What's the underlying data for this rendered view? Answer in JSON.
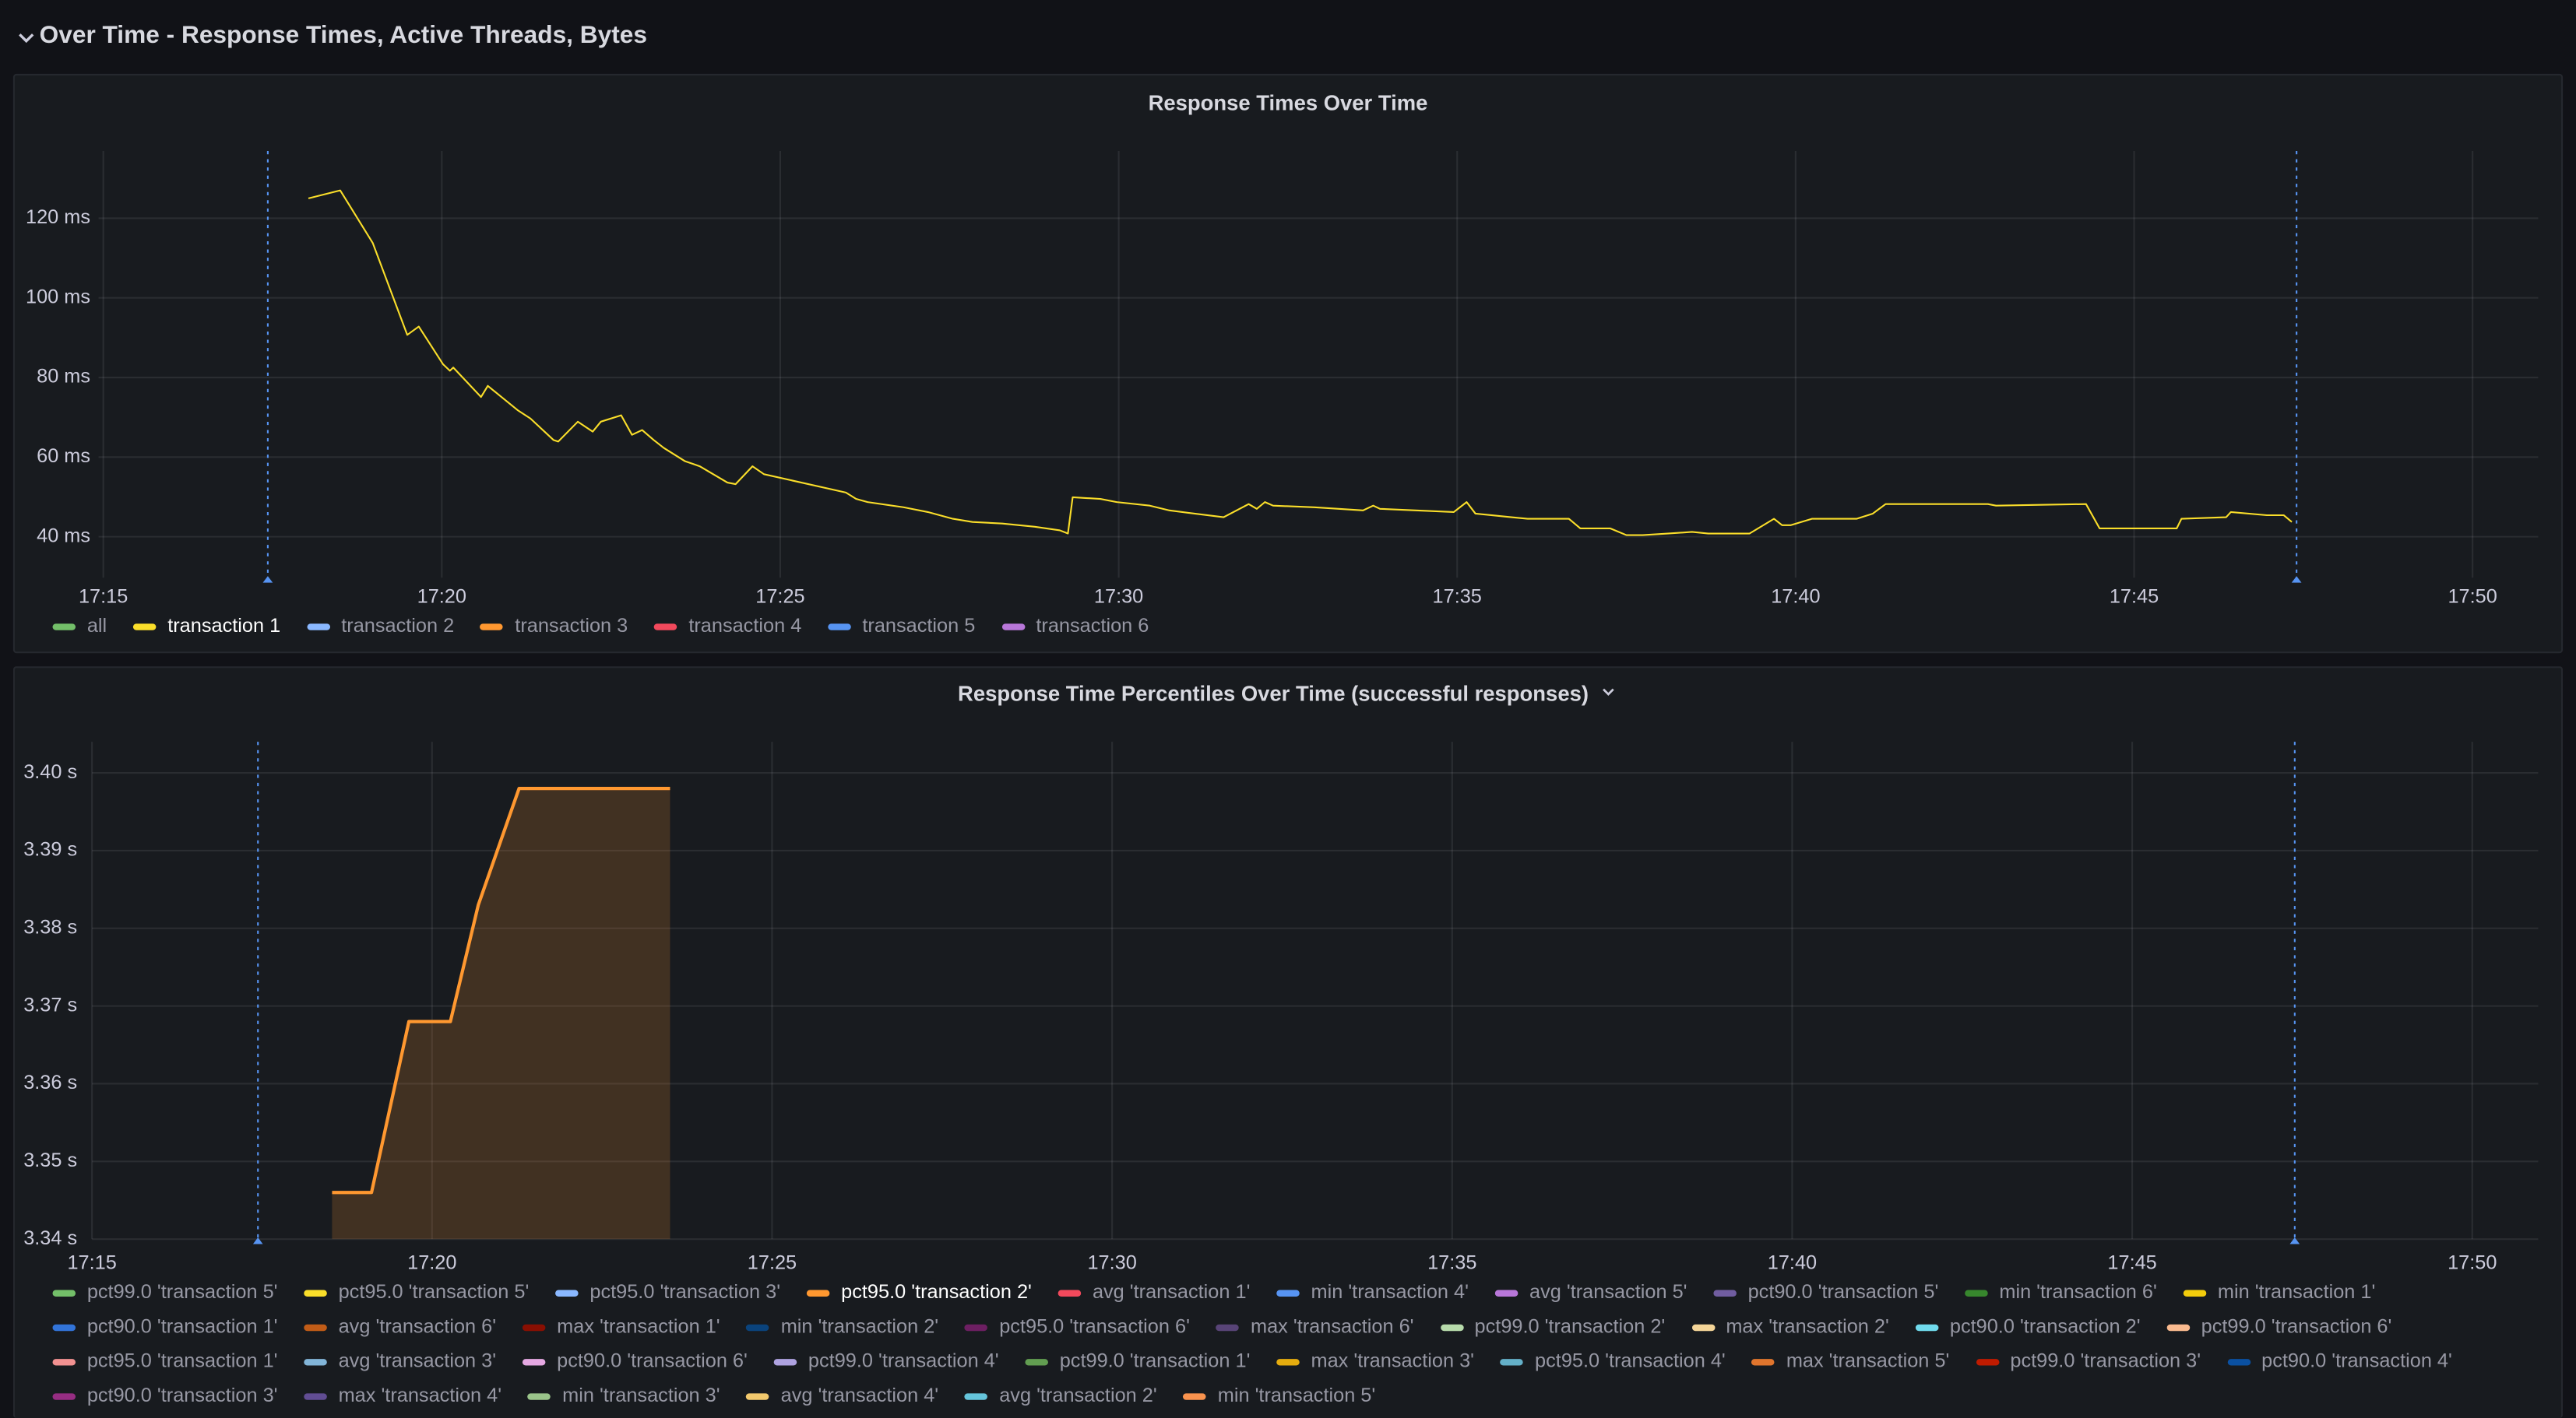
{
  "header": {
    "title": "Over Time - Response Times, Active Threads, Bytes"
  },
  "chart_data": [
    {
      "type": "line",
      "title": "Response Times Over Time",
      "grid": true,
      "line_width": 1,
      "fill": false,
      "xlim": [
        1034.93,
        1070.97
      ],
      "xticks": [
        {
          "value": 1035,
          "label": "17:15"
        },
        {
          "value": 1040,
          "label": "17:20"
        },
        {
          "value": 1045,
          "label": "17:25"
        },
        {
          "value": 1050,
          "label": "17:30"
        },
        {
          "value": 1055,
          "label": "17:35"
        },
        {
          "value": 1060,
          "label": "17:40"
        },
        {
          "value": 1065,
          "label": "17:45"
        },
        {
          "value": 1070,
          "label": "17:50"
        }
      ],
      "ylim": [
        29.7,
        136.9
      ],
      "yticks": [
        {
          "value": 40,
          "label": "40 ms"
        },
        {
          "value": 60,
          "label": "60 ms"
        },
        {
          "value": 80,
          "label": "80 ms"
        },
        {
          "value": 100,
          "label": "100 ms"
        },
        {
          "value": 120,
          "label": "120 ms"
        }
      ],
      "markers": [
        1037.43,
        1067.4
      ],
      "marker_color": "#5794f2",
      "series": [
        {
          "name": "all",
          "color": "#73bf69",
          "x": [],
          "values": []
        },
        {
          "name": "transaction 1",
          "color": "#fade2a",
          "x": [
            1038.03,
            1038.5,
            1038.98,
            1039.49,
            1039.66,
            1040.02,
            1040.12,
            1040.17,
            1040.58,
            1040.68,
            1041.12,
            1041.31,
            1041.65,
            1041.72,
            1042.01,
            1042.23,
            1042.35,
            1042.65,
            1042.81,
            1042.96,
            1043.13,
            1043.28,
            1043.59,
            1043.81,
            1044.22,
            1044.34,
            1044.59,
            1044.76,
            1045.97,
            1046.12,
            1046.29,
            1046.82,
            1047.18,
            1047.55,
            1047.84,
            1048.28,
            1048.76,
            1049.13,
            1049.25,
            1049.32,
            1049.73,
            1049.97,
            1050.46,
            1050.75,
            1051.55,
            1051.92,
            1052.04,
            1052.16,
            1052.28,
            1052.89,
            1053.61,
            1053.76,
            1053.86,
            1054.95,
            1055.14,
            1055.27,
            1055.8,
            1056.04,
            1056.65,
            1056.82,
            1057.26,
            1057.5,
            1057.74,
            1058.11,
            1058.47,
            1058.71,
            1059.32,
            1059.68,
            1059.8,
            1059.93,
            1060.24,
            1060.9,
            1061.14,
            1061.33,
            1062.84,
            1062.96,
            1064.29,
            1064.49,
            1065.63,
            1065.7,
            1066.36,
            1066.43,
            1066.96,
            1067.21,
            1067.33
          ],
          "values": [
            125,
            127,
            113.8,
            90.7,
            92.8,
            83.3,
            81.7,
            82.5,
            75.1,
            77.9,
            71.8,
            69.7,
            64.3,
            63.9,
            68.9,
            66.4,
            68.9,
            70.5,
            65.6,
            66.8,
            64.3,
            62.3,
            59,
            57.7,
            53.6,
            53.2,
            57.7,
            55.7,
            51.1,
            49.5,
            48.7,
            47.4,
            46.2,
            44.5,
            43.7,
            43.3,
            42.5,
            41.6,
            40.8,
            49.9,
            49.5,
            48.7,
            47.8,
            46.6,
            44.9,
            48.2,
            47,
            48.7,
            47.8,
            47.4,
            46.6,
            47.8,
            47,
            46.2,
            48.7,
            45.8,
            44.9,
            44.5,
            44.5,
            42.1,
            42.1,
            40.4,
            40.4,
            40.8,
            41.2,
            40.8,
            40.8,
            44.5,
            42.9,
            42.9,
            44.5,
            44.5,
            45.8,
            48.2,
            48.2,
            47.8,
            48.2,
            42.1,
            42.1,
            44.5,
            44.9,
            46.2,
            45.4,
            45.4,
            43.7
          ]
        },
        {
          "name": "transaction 2",
          "color": "#8ab8ff",
          "x": [],
          "values": []
        },
        {
          "name": "transaction 3",
          "color": "#ff9830",
          "x": [],
          "values": []
        },
        {
          "name": "transaction 4",
          "color": "#f2495c",
          "x": [],
          "values": []
        },
        {
          "name": "transaction 5",
          "color": "#5794f2",
          "x": [],
          "values": []
        },
        {
          "name": "transaction 6",
          "color": "#b877d9",
          "x": [],
          "values": []
        }
      ]
    },
    {
      "type": "line",
      "title": "Response Time Percentiles Over Time (successful responses)",
      "grid": true,
      "line_width": 2,
      "fill": true,
      "xlim": [
        1035,
        1070.97
      ],
      "xticks": [
        {
          "value": 1035,
          "label": "17:15"
        },
        {
          "value": 1040,
          "label": "17:20"
        },
        {
          "value": 1045,
          "label": "17:25"
        },
        {
          "value": 1050,
          "label": "17:30"
        },
        {
          "value": 1055,
          "label": "17:35"
        },
        {
          "value": 1060,
          "label": "17:40"
        },
        {
          "value": 1065,
          "label": "17:45"
        },
        {
          "value": 1070,
          "label": "17:50"
        }
      ],
      "ylim": [
        3.34,
        3.404
      ],
      "yticks": [
        {
          "value": 3.34,
          "label": "3.34 s"
        },
        {
          "value": 3.35,
          "label": "3.35 s"
        },
        {
          "value": 3.36,
          "label": "3.36 s"
        },
        {
          "value": 3.37,
          "label": "3.37 s"
        },
        {
          "value": 3.38,
          "label": "3.38 s"
        },
        {
          "value": 3.39,
          "label": "3.39 s"
        },
        {
          "value": 3.4,
          "label": "3.40 s"
        }
      ],
      "markers": [
        1037.44,
        1067.39
      ],
      "marker_color": "#5794f2",
      "series": [
        {
          "name": "pct99.0 'transaction 5'",
          "color": "#73bf69",
          "x": [],
          "values": []
        },
        {
          "name": "pct95.0 'transaction 5'",
          "color": "#fade2a",
          "x": [],
          "values": []
        },
        {
          "name": "pct95.0 'transaction 3'",
          "color": "#8ab8ff",
          "x": [],
          "values": []
        },
        {
          "name": "pct95.0 'transaction 2'",
          "color": "#ff9830",
          "x": [
            1038.53,
            1039.11,
            1039.66,
            1040.27,
            1040.68,
            1041.28,
            1043.5
          ],
          "values": [
            3.346,
            3.346,
            3.368,
            3.368,
            3.383,
            3.398,
            3.398
          ]
        },
        {
          "name": "avg 'transaction 1'",
          "color": "#f2495c",
          "x": [],
          "values": []
        },
        {
          "name": "min 'transaction 4'",
          "color": "#5794f2",
          "x": [],
          "values": []
        },
        {
          "name": "avg 'transaction 5'",
          "color": "#b877d9",
          "x": [],
          "values": []
        },
        {
          "name": "pct90.0 'transaction 5'",
          "color": "#705da0",
          "x": [],
          "values": []
        },
        {
          "name": "min 'transaction 6'",
          "color": "#37872d",
          "x": [],
          "values": []
        },
        {
          "name": "min 'transaction 1'",
          "color": "#f2cc0c",
          "x": [],
          "values": []
        },
        {
          "name": "pct90.0 'transaction 1'",
          "color": "#3274d9",
          "x": [],
          "values": []
        },
        {
          "name": "avg 'transaction 6'",
          "color": "#c15c17",
          "x": [],
          "values": []
        },
        {
          "name": "max 'transaction 1'",
          "color": "#890f02",
          "x": [],
          "values": []
        },
        {
          "name": "min 'transaction 2'",
          "color": "#0a437c",
          "x": [],
          "values": []
        },
        {
          "name": "pct95.0 'transaction 6'",
          "color": "#6d1f62",
          "x": [],
          "values": []
        },
        {
          "name": "max 'transaction 6'",
          "color": "#584477",
          "x": [],
          "values": []
        },
        {
          "name": "pct99.0 'transaction 2'",
          "color": "#b7dbab",
          "x": [],
          "values": []
        },
        {
          "name": "max 'transaction 2'",
          "color": "#f4d598",
          "x": [],
          "values": []
        },
        {
          "name": "pct90.0 'transaction 2'",
          "color": "#70dbed",
          "x": [],
          "values": []
        },
        {
          "name": "pct99.0 'transaction 6'",
          "color": "#f9ba8f",
          "x": [],
          "values": []
        },
        {
          "name": "pct95.0 'transaction 1'",
          "color": "#f29191",
          "x": [],
          "values": []
        },
        {
          "name": "avg 'transaction 3'",
          "color": "#82b5d8",
          "x": [],
          "values": []
        },
        {
          "name": "pct90.0 'transaction 6'",
          "color": "#e5a8e2",
          "x": [],
          "values": []
        },
        {
          "name": "pct99.0 'transaction 4'",
          "color": "#aea2e0",
          "x": [],
          "values": []
        },
        {
          "name": "pct99.0 'transaction 1'",
          "color": "#629e51",
          "x": [],
          "values": []
        },
        {
          "name": "max 'transaction 3'",
          "color": "#e5ac0e",
          "x": [],
          "values": []
        },
        {
          "name": "pct95.0 'transaction 4'",
          "color": "#64b0c8",
          "x": [],
          "values": []
        },
        {
          "name": "max 'transaction 5'",
          "color": "#e0752d",
          "x": [],
          "values": []
        },
        {
          "name": "pct99.0 'transaction 3'",
          "color": "#bf1b00",
          "x": [],
          "values": []
        },
        {
          "name": "pct90.0 'transaction 4'",
          "color": "#0a50a1",
          "x": [],
          "values": []
        },
        {
          "name": "pct90.0 'transaction 3'",
          "color": "#962d82",
          "x": [],
          "values": []
        },
        {
          "name": "max 'transaction 4'",
          "color": "#614d93",
          "x": [],
          "values": []
        },
        {
          "name": "min 'transaction 3'",
          "color": "#9ac48a",
          "x": [],
          "values": []
        },
        {
          "name": "avg 'transaction 4'",
          "color": "#f2c96d",
          "x": [],
          "values": []
        },
        {
          "name": "avg 'transaction 2'",
          "color": "#65c5db",
          "x": [],
          "values": []
        },
        {
          "name": "min 'transaction 5'",
          "color": "#f9934e",
          "x": [],
          "values": []
        }
      ]
    }
  ]
}
